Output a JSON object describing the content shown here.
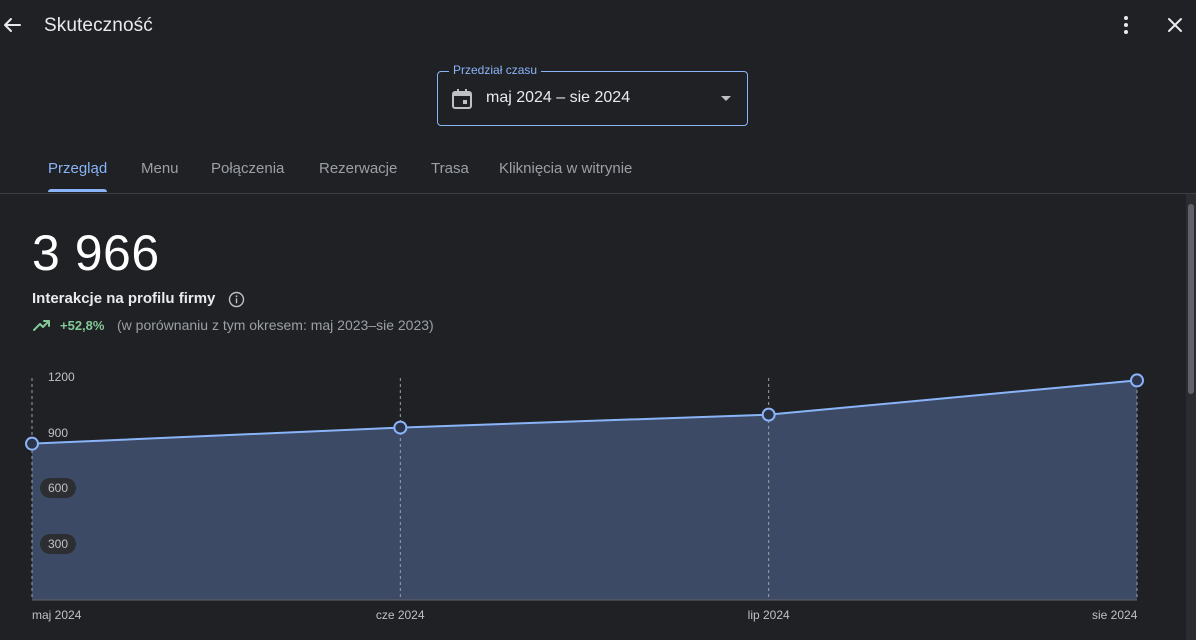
{
  "header": {
    "title": "Skuteczność"
  },
  "range": {
    "label": "Przedział czasu",
    "value": "maj 2024 – sie 2024"
  },
  "tabs": [
    {
      "label": "Przegląd",
      "active": true
    },
    {
      "label": "Menu",
      "active": false
    },
    {
      "label": "Połączenia",
      "active": false
    },
    {
      "label": "Rezerwacje",
      "active": false
    },
    {
      "label": "Trasa",
      "active": false
    },
    {
      "label": "Kliknięcia w witrynie",
      "active": false
    }
  ],
  "summary": {
    "total": "3 966",
    "label": "Interakcje na profilu firmy",
    "change": "+52,8%",
    "compare": "(w porównaniu z tym okresem: maj 2023–sie 2023)"
  },
  "colors": {
    "accent": "#8ab4f8",
    "positive": "#81c995",
    "area_fill": "#3c4a66"
  },
  "chart_data": {
    "type": "area",
    "categories": [
      "maj 2024",
      "cze 2024",
      "lip 2024",
      "sie 2024"
    ],
    "values": [
      845,
      932,
      1002,
      1187
    ],
    "yticks": [
      "1200",
      "900",
      "600",
      "300"
    ],
    "ylim": [
      0,
      1200
    ],
    "grid": "vertical-dashed"
  }
}
